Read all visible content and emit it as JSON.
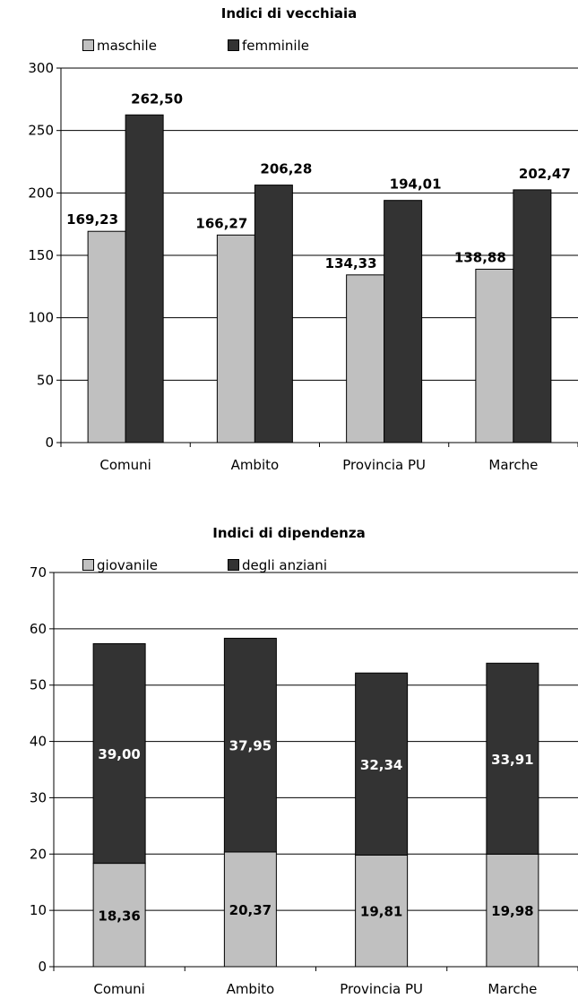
{
  "chart_data": [
    {
      "type": "bar",
      "title": "Indici di vecchiaia",
      "categories": [
        "Comuni",
        "Ambito",
        "Provincia PU",
        "Marche"
      ],
      "series": [
        {
          "name": "maschile",
          "values": [
            169.23,
            166.27,
            134.33,
            138.88
          ],
          "labels": [
            "169,23",
            "166,27",
            "134,33",
            "138,88"
          ],
          "color": "#c0c0c0"
        },
        {
          "name": "femminile",
          "values": [
            262.5,
            206.28,
            194.01,
            202.47
          ],
          "labels": [
            "262,50",
            "206,28",
            "194,01",
            "202,47"
          ],
          "color": "#333333"
        }
      ],
      "ylim": [
        0,
        300
      ],
      "yticks": [
        0,
        50,
        100,
        150,
        200,
        250,
        300
      ],
      "grid": true,
      "legend_position": "top-left"
    },
    {
      "type": "bar",
      "stacked": true,
      "title": "Indici di dipendenza",
      "categories": [
        "Comuni",
        "Ambito",
        "Provincia PU",
        "Marche"
      ],
      "series": [
        {
          "name": "giovanile",
          "values": [
            18.36,
            20.37,
            19.81,
            19.98
          ],
          "labels": [
            "18,36",
            "20,37",
            "19,81",
            "19,98"
          ],
          "color": "#c0c0c0"
        },
        {
          "name": "degli anziani",
          "values": [
            39.0,
            37.95,
            32.34,
            33.91
          ],
          "labels": [
            "39,00",
            "37,95",
            "32,34",
            "33,91"
          ],
          "color": "#333333"
        }
      ],
      "ylim": [
        0,
        70
      ],
      "yticks": [
        0,
        10,
        20,
        30,
        40,
        50,
        60,
        70
      ],
      "grid": true,
      "legend_position": "top-left"
    }
  ]
}
